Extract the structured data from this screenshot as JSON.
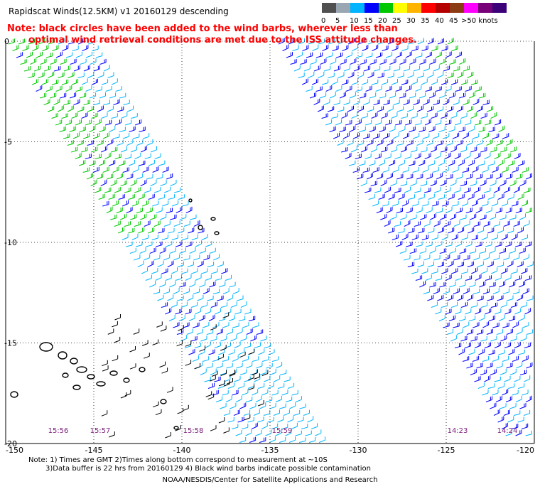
{
  "header": {
    "title": "Rapidscat Winds(12.5KM) v1 20160129 descending",
    "note_line1": "Note: black circles have been added to the wind barbs, wherever less than",
    "note_line2": "optimal wind retrieval conditions are met due to the ISS attitude changes."
  },
  "legend": {
    "unit": "knots",
    "bins": [
      {
        "label": "0",
        "color": "#505050"
      },
      {
        "label": "5",
        "color": "#9aa6b2"
      },
      {
        "label": "10",
        "color": "#00b4ff"
      },
      {
        "label": "15",
        "color": "#0000ff"
      },
      {
        "label": "20",
        "color": "#00c800"
      },
      {
        "label": "25",
        "color": "#ffff00"
      },
      {
        "label": "30",
        "color": "#ffb400"
      },
      {
        "label": "35",
        "color": "#ff0000"
      },
      {
        "label": "40",
        "color": "#b40000"
      },
      {
        "label": "45",
        "color": "#8c3c14"
      },
      {
        "label": ">50",
        "color": "#ff00ff"
      },
      {
        "label": "",
        "color": "#780078"
      },
      {
        "label": "",
        "color": "#3c0078"
      }
    ],
    "last_label": ">50 knots"
  },
  "map": {
    "lon_ticks": [
      "-150",
      "-145",
      "-140",
      "-135",
      "-130",
      "-125",
      "-120"
    ],
    "lat_ticks": [
      "0",
      "-5",
      "-10",
      "-15",
      "-20"
    ],
    "times": [
      "15:56",
      "15:57",
      "15:58",
      "15:59",
      "14:23",
      "14:24"
    ]
  },
  "footer": {
    "line1": "Note: 1) Times are GMT 2)Times along bottom correspond to measurement at ~10S",
    "line2": "3)Data buffer is 22 hrs from 20160129 4) Black wind barbs indicate possible contamination",
    "credit": "NOAA/NESDIS/Center for Satellite Applications and Research"
  }
}
